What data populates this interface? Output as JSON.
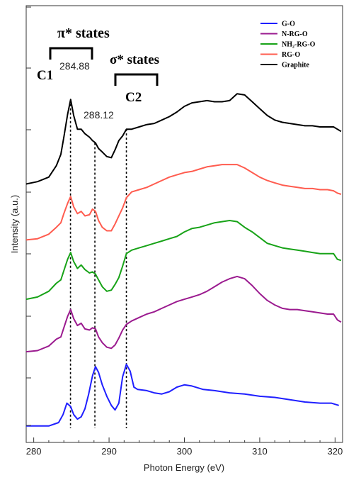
{
  "chart_data": {
    "type": "line",
    "xlabel": "Photon Energy (eV)",
    "ylabel": "Intensity (a.u.)",
    "xlim": [
      279,
      321
    ],
    "x_ticks": [
      "280",
      "290",
      "300",
      "310",
      "320"
    ],
    "series": [
      {
        "name": "G-O",
        "color": "#1f1fff",
        "points": [
          [
            279,
            0.02
          ],
          [
            282,
            0.02
          ],
          [
            283.3,
            0.05
          ],
          [
            283.9,
            0.12
          ],
          [
            284.4,
            0.22
          ],
          [
            284.9,
            0.19
          ],
          [
            285.3,
            0.12
          ],
          [
            285.8,
            0.08
          ],
          [
            286.3,
            0.1
          ],
          [
            286.8,
            0.17
          ],
          [
            287.3,
            0.3
          ],
          [
            287.8,
            0.46
          ],
          [
            288.2,
            0.54
          ],
          [
            288.6,
            0.49
          ],
          [
            289.1,
            0.38
          ],
          [
            289.7,
            0.28
          ],
          [
            290.3,
            0.2
          ],
          [
            290.8,
            0.16
          ],
          [
            291.3,
            0.22
          ],
          [
            291.8,
            0.45
          ],
          [
            292.3,
            0.56
          ],
          [
            292.8,
            0.5
          ],
          [
            293.3,
            0.36
          ],
          [
            293.8,
            0.34
          ],
          [
            295,
            0.33
          ],
          [
            296,
            0.31
          ],
          [
            297,
            0.3
          ],
          [
            298,
            0.32
          ],
          [
            299,
            0.36
          ],
          [
            300,
            0.38
          ],
          [
            301,
            0.37
          ],
          [
            302.5,
            0.34
          ],
          [
            304,
            0.33
          ],
          [
            306,
            0.31
          ],
          [
            308,
            0.3
          ],
          [
            310,
            0.28
          ],
          [
            312,
            0.27
          ],
          [
            314,
            0.25
          ],
          [
            316,
            0.23
          ],
          [
            318,
            0.22
          ],
          [
            319.5,
            0.22
          ],
          [
            320.5,
            0.2
          ]
        ]
      },
      {
        "name": "N-RG-O",
        "color": "#9b1a8f",
        "points": [
          [
            279,
            0.67
          ],
          [
            280.5,
            0.68
          ],
          [
            282,
            0.72
          ],
          [
            283,
            0.78
          ],
          [
            283.6,
            0.8
          ],
          [
            284,
            0.88
          ],
          [
            284.5,
            0.98
          ],
          [
            284.9,
            1.04
          ],
          [
            285.3,
            0.96
          ],
          [
            285.8,
            0.9
          ],
          [
            286.3,
            0.92
          ],
          [
            286.8,
            0.87
          ],
          [
            287.4,
            0.86
          ],
          [
            287.8,
            0.88
          ],
          [
            288.2,
            0.87
          ],
          [
            288.6,
            0.8
          ],
          [
            289.1,
            0.75
          ],
          [
            289.7,
            0.71
          ],
          [
            290.3,
            0.7
          ],
          [
            290.8,
            0.73
          ],
          [
            291.3,
            0.79
          ],
          [
            291.8,
            0.86
          ],
          [
            292.3,
            0.91
          ],
          [
            293,
            0.94
          ],
          [
            294,
            0.97
          ],
          [
            295,
            1.0
          ],
          [
            296,
            1.02
          ],
          [
            297,
            1.05
          ],
          [
            298,
            1.08
          ],
          [
            299,
            1.11
          ],
          [
            300,
            1.13
          ],
          [
            301,
            1.15
          ],
          [
            302,
            1.17
          ],
          [
            303,
            1.2
          ],
          [
            304,
            1.24
          ],
          [
            305,
            1.28
          ],
          [
            306,
            1.31
          ],
          [
            307,
            1.33
          ],
          [
            308,
            1.31
          ],
          [
            309,
            1.25
          ],
          [
            310,
            1.18
          ],
          [
            311,
            1.12
          ],
          [
            312,
            1.08
          ],
          [
            313,
            1.05
          ],
          [
            314,
            1.04
          ],
          [
            315,
            1.04
          ],
          [
            316,
            1.03
          ],
          [
            317,
            1.02
          ],
          [
            318,
            1.01
          ],
          [
            319,
            1.0
          ],
          [
            319.8,
            1.0
          ],
          [
            320.3,
            0.95
          ],
          [
            320.8,
            0.93
          ]
        ]
      },
      {
        "name": "NH₂-RG-O",
        "color": "#18a318",
        "points": [
          [
            279,
            1.13
          ],
          [
            280.5,
            1.15
          ],
          [
            282,
            1.2
          ],
          [
            283,
            1.27
          ],
          [
            283.6,
            1.3
          ],
          [
            284,
            1.38
          ],
          [
            284.5,
            1.48
          ],
          [
            284.9,
            1.54
          ],
          [
            285.3,
            1.46
          ],
          [
            285.8,
            1.4
          ],
          [
            286.3,
            1.43
          ],
          [
            286.8,
            1.39
          ],
          [
            287.4,
            1.36
          ],
          [
            287.8,
            1.37
          ],
          [
            288.2,
            1.35
          ],
          [
            288.6,
            1.3
          ],
          [
            289.1,
            1.24
          ],
          [
            289.7,
            1.2
          ],
          [
            290.3,
            1.21
          ],
          [
            290.8,
            1.26
          ],
          [
            291.3,
            1.32
          ],
          [
            291.8,
            1.42
          ],
          [
            292.3,
            1.53
          ],
          [
            293,
            1.56
          ],
          [
            294,
            1.58
          ],
          [
            295,
            1.6
          ],
          [
            296,
            1.62
          ],
          [
            297,
            1.64
          ],
          [
            298,
            1.66
          ],
          [
            299,
            1.68
          ],
          [
            300,
            1.72
          ],
          [
            301,
            1.75
          ],
          [
            302,
            1.76
          ],
          [
            303,
            1.78
          ],
          [
            304,
            1.8
          ],
          [
            305,
            1.81
          ],
          [
            306,
            1.82
          ],
          [
            307,
            1.81
          ],
          [
            308,
            1.76
          ],
          [
            309,
            1.72
          ],
          [
            310,
            1.67
          ],
          [
            311,
            1.62
          ],
          [
            312,
            1.6
          ],
          [
            313,
            1.58
          ],
          [
            314,
            1.57
          ],
          [
            315,
            1.56
          ],
          [
            316,
            1.55
          ],
          [
            317,
            1.54
          ],
          [
            318,
            1.53
          ],
          [
            319,
            1.53
          ],
          [
            319.8,
            1.53
          ],
          [
            320.3,
            1.48
          ],
          [
            320.8,
            1.47
          ]
        ]
      },
      {
        "name": "RG-O",
        "color": "#ff5c4f",
        "points": [
          [
            279,
            1.65
          ],
          [
            280.5,
            1.66
          ],
          [
            282,
            1.7
          ],
          [
            283,
            1.76
          ],
          [
            283.6,
            1.8
          ],
          [
            284,
            1.88
          ],
          [
            284.5,
            1.97
          ],
          [
            284.9,
            2.03
          ],
          [
            285.3,
            1.94
          ],
          [
            285.8,
            1.88
          ],
          [
            286.3,
            1.9
          ],
          [
            286.8,
            1.86
          ],
          [
            287.4,
            1.87
          ],
          [
            287.8,
            1.92
          ],
          [
            288.2,
            1.9
          ],
          [
            288.6,
            1.82
          ],
          [
            289.1,
            1.76
          ],
          [
            289.7,
            1.73
          ],
          [
            290.3,
            1.73
          ],
          [
            290.8,
            1.79
          ],
          [
            291.3,
            1.86
          ],
          [
            291.8,
            1.93
          ],
          [
            292.3,
            2.02
          ],
          [
            293,
            2.07
          ],
          [
            294,
            2.09
          ],
          [
            295,
            2.11
          ],
          [
            296,
            2.14
          ],
          [
            297,
            2.17
          ],
          [
            298,
            2.2
          ],
          [
            299,
            2.22
          ],
          [
            300,
            2.24
          ],
          [
            301,
            2.25
          ],
          [
            302,
            2.27
          ],
          [
            303,
            2.29
          ],
          [
            304,
            2.3
          ],
          [
            305,
            2.31
          ],
          [
            306,
            2.31
          ],
          [
            307,
            2.31
          ],
          [
            308,
            2.28
          ],
          [
            309,
            2.24
          ],
          [
            310,
            2.2
          ],
          [
            311,
            2.17
          ],
          [
            312,
            2.15
          ],
          [
            313,
            2.13
          ],
          [
            314,
            2.12
          ],
          [
            315,
            2.11
          ],
          [
            316,
            2.1
          ],
          [
            317,
            2.1
          ],
          [
            318,
            2.09
          ],
          [
            319,
            2.09
          ],
          [
            319.8,
            2.08
          ],
          [
            320.3,
            2.06
          ],
          [
            320.8,
            2.05
          ]
        ]
      },
      {
        "name": "Graphite",
        "color": "#000000",
        "points": [
          [
            279,
            2.14
          ],
          [
            280.5,
            2.16
          ],
          [
            282,
            2.2
          ],
          [
            283,
            2.3
          ],
          [
            283.6,
            2.4
          ],
          [
            284,
            2.55
          ],
          [
            284.5,
            2.75
          ],
          [
            284.9,
            2.88
          ],
          [
            285.3,
            2.74
          ],
          [
            285.8,
            2.62
          ],
          [
            286.3,
            2.62
          ],
          [
            286.8,
            2.58
          ],
          [
            287.4,
            2.55
          ],
          [
            287.8,
            2.52
          ],
          [
            288.2,
            2.5
          ],
          [
            288.6,
            2.45
          ],
          [
            289.1,
            2.42
          ],
          [
            289.7,
            2.38
          ],
          [
            290.3,
            2.37
          ],
          [
            290.8,
            2.44
          ],
          [
            291.3,
            2.52
          ],
          [
            291.8,
            2.56
          ],
          [
            292.3,
            2.62
          ],
          [
            293,
            2.62
          ],
          [
            294,
            2.64
          ],
          [
            295,
            2.66
          ],
          [
            296,
            2.67
          ],
          [
            297,
            2.7
          ],
          [
            298,
            2.73
          ],
          [
            299,
            2.77
          ],
          [
            300,
            2.82
          ],
          [
            301,
            2.85
          ],
          [
            302,
            2.86
          ],
          [
            303,
            2.87
          ],
          [
            304,
            2.86
          ],
          [
            305,
            2.86
          ],
          [
            306,
            2.87
          ],
          [
            307,
            2.93
          ],
          [
            308,
            2.92
          ],
          [
            309,
            2.86
          ],
          [
            310,
            2.8
          ],
          [
            311,
            2.74
          ],
          [
            312,
            2.7
          ],
          [
            313,
            2.68
          ],
          [
            314,
            2.67
          ],
          [
            315,
            2.66
          ],
          [
            316,
            2.65
          ],
          [
            317,
            2.65
          ],
          [
            318,
            2.64
          ],
          [
            319,
            2.64
          ],
          [
            319.8,
            2.64
          ],
          [
            320.3,
            2.62
          ],
          [
            320.8,
            2.6
          ]
        ]
      }
    ],
    "reference_lines": [
      {
        "x": 284.88,
        "y_top": 2.84,
        "label": "284.88"
      },
      {
        "x": 288.12,
        "y_top": 2.5,
        "label": "288.12"
      },
      {
        "x": 292.3,
        "y_top": 2.62,
        "label": ""
      }
    ],
    "annotations": {
      "pi_states": "π* states",
      "sigma_states": "σ* states",
      "c1": "C1",
      "c2": "C2"
    },
    "legend_position": "top-right",
    "grid": false
  }
}
